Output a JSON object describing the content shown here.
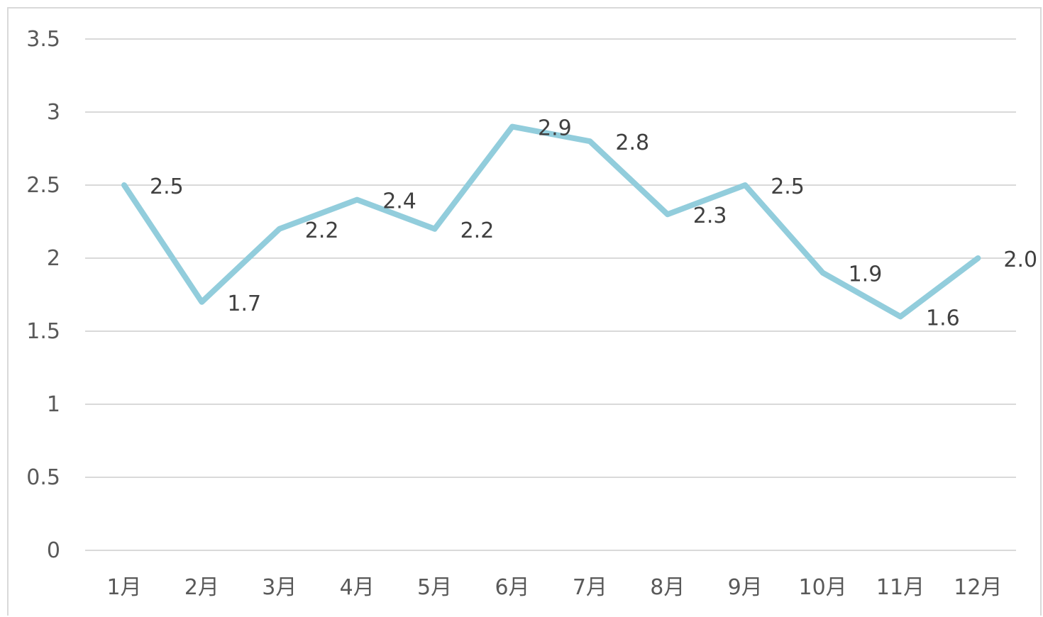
{
  "chart_data": {
    "type": "line",
    "title": "",
    "xlabel": "",
    "ylabel": "",
    "categories": [
      "1月",
      "2月",
      "3月",
      "4月",
      "5月",
      "6月",
      "7月",
      "8月",
      "9月",
      "10月",
      "11月",
      "12月"
    ],
    "series": [
      {
        "values": [
          2.5,
          1.7,
          2.2,
          2.4,
          2.2,
          2.9,
          2.8,
          2.3,
          2.5,
          1.9,
          1.6,
          2.0
        ],
        "data_labels": [
          "2.5",
          "1.7",
          "2.2",
          "2.4",
          "2.2",
          "2.9",
          "2.8",
          "2.3",
          "2.5",
          "1.9",
          "1.6",
          "2.0"
        ],
        "color": "#92cddc"
      }
    ],
    "ylim": [
      0,
      3.5
    ],
    "y_ticks": [
      "0",
      "0.5",
      "1",
      "1.5",
      "2",
      "2.5",
      "3",
      "3.5"
    ],
    "grid": true,
    "legend": "none",
    "colors": {
      "line": "#92cddc",
      "grid": "#d9d9d9",
      "tick_text": "#595959",
      "label_text": "#404040"
    }
  }
}
